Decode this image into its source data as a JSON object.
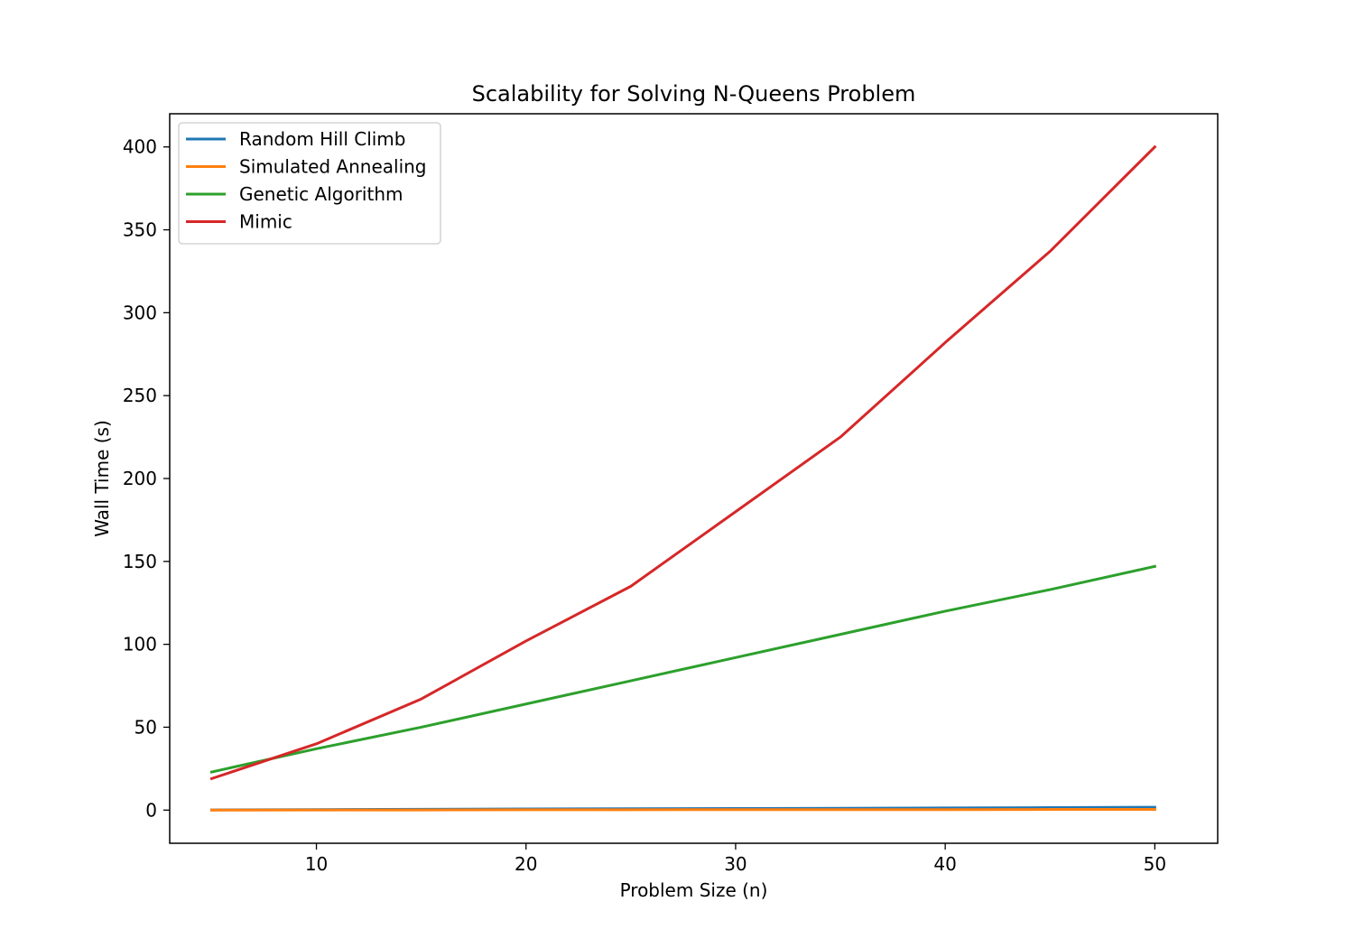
{
  "chart_data": {
    "type": "line",
    "title": "Scalability for Solving N-Queens Problem",
    "xlabel": "Problem Size (n)",
    "ylabel": "Wall Time (s)",
    "xlim": [
      3,
      53
    ],
    "ylim": [
      -20,
      420
    ],
    "xticks": [
      10,
      20,
      30,
      40,
      50
    ],
    "yticks": [
      0,
      50,
      100,
      150,
      200,
      250,
      300,
      350,
      400
    ],
    "grid": false,
    "legend_position": "upper left",
    "x": [
      5,
      10,
      15,
      20,
      25,
      30,
      35,
      40,
      45,
      50
    ],
    "series": [
      {
        "name": "Random Hill Climb",
        "color": "#1f77b4",
        "values": [
          0.1,
          0.3,
          0.5,
          0.7,
          0.8,
          1.0,
          1.1,
          1.3,
          1.5,
          1.7
        ]
      },
      {
        "name": "Simulated Annealing",
        "color": "#ff7f0e",
        "values": [
          0.0,
          0.1,
          0.1,
          0.2,
          0.2,
          0.3,
          0.3,
          0.3,
          0.4,
          0.4
        ]
      },
      {
        "name": "Genetic Algorithm",
        "color": "#2ca02c",
        "values": [
          23,
          37,
          50,
          64,
          78,
          92,
          106,
          120,
          133,
          147
        ]
      },
      {
        "name": "Mimic",
        "color": "#d62728",
        "values": [
          19,
          40,
          67,
          102,
          135,
          180,
          225,
          282,
          337,
          400
        ]
      }
    ]
  }
}
